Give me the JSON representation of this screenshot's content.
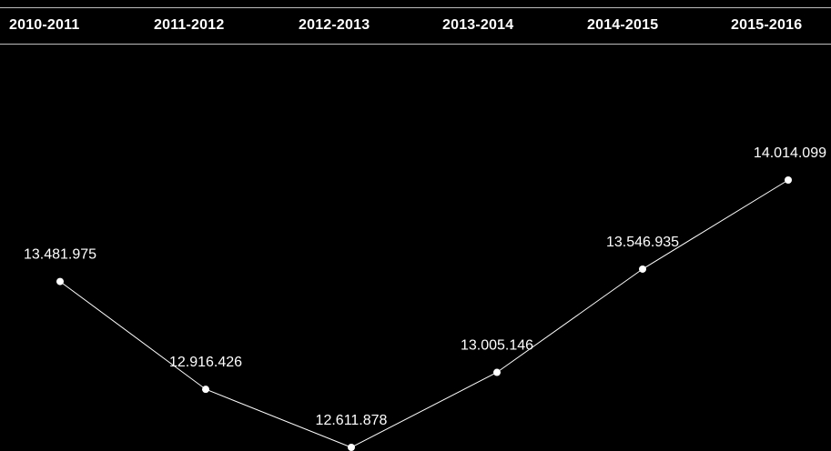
{
  "colors": {
    "background": "#000000",
    "line": "#ffffff",
    "point": "#ffffff",
    "text": "#ffffff",
    "rule": "#bdbdbd"
  },
  "header": {
    "years": [
      "2010-2011",
      "2011-2012",
      "2012-2013",
      "2013-2014",
      "2014-2015",
      "2015-2016"
    ]
  },
  "chart_data": {
    "type": "line",
    "title": "",
    "xlabel": "",
    "ylabel": "",
    "grid": false,
    "legend": "none",
    "categories": [
      "2010-2011",
      "2011-2012",
      "2012-2013",
      "2013-2014",
      "2014-2015",
      "2015-2016"
    ],
    "series": [
      {
        "values": [
          13481975,
          12916426,
          12611878,
          13005146,
          13546935,
          14014099
        ],
        "labels": [
          "13.481.975",
          "12.916.426",
          "12.611.878",
          "13.005.146",
          "13.546.935",
          "14.014.099"
        ]
      }
    ]
  }
}
